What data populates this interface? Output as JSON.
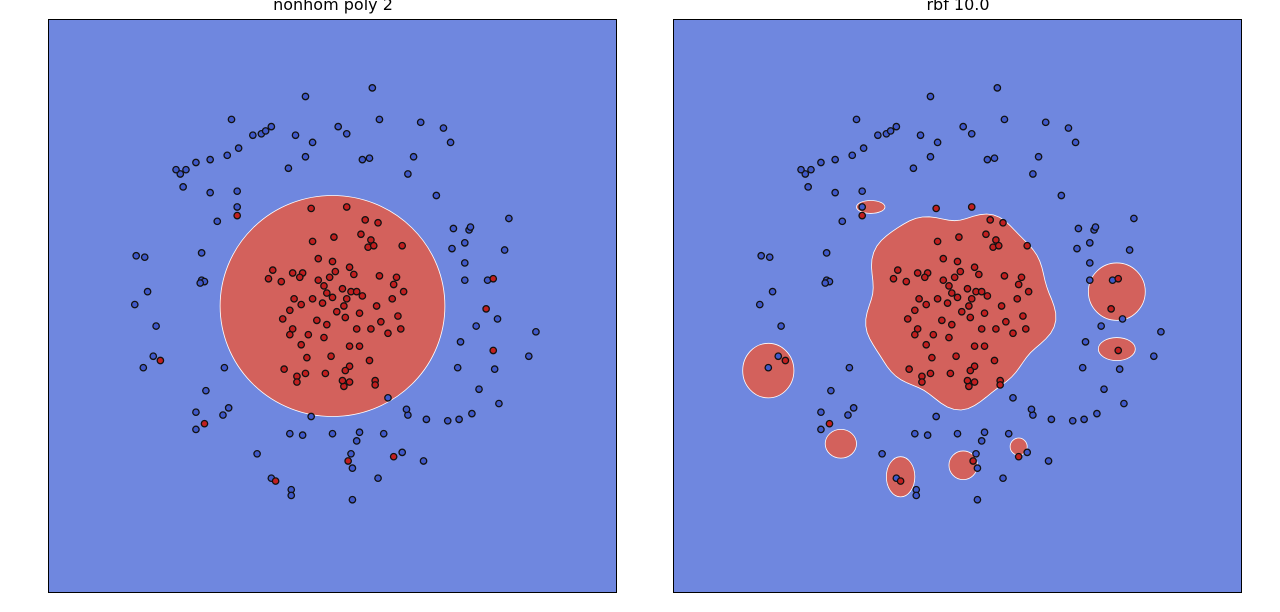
{
  "colors": {
    "background_region": "#6f87df",
    "positive_region": "#d3615c",
    "point_blue": "#4059c9",
    "point_red": "#c11f1f",
    "point_edge": "#111111"
  },
  "chart_data": [
    {
      "type": "scatter",
      "title": "nonhom poly 2",
      "xlim": [
        -2,
        2
      ],
      "ylim": [
        -2,
        2
      ],
      "grid": false,
      "axes_ticks": false,
      "decision_regions": [
        {
          "shape": "ellipse",
          "class": "red",
          "cx": 0.0,
          "cy": 0.0,
          "rx": 0.79,
          "ry": 0.77
        }
      ],
      "points": {
        "red": [
          [
            -0.15,
            0.68
          ],
          [
            0.1,
            0.69
          ],
          [
            0.23,
            0.6
          ],
          [
            0.32,
            0.58
          ],
          [
            0.2,
            0.5
          ],
          [
            0.27,
            0.46
          ],
          [
            -0.14,
            0.45
          ],
          [
            0.01,
            0.48
          ],
          [
            0.25,
            0.41
          ],
          [
            0.49,
            0.42
          ],
          [
            -0.1,
            0.33
          ],
          [
            0.0,
            0.31
          ],
          [
            0.12,
            0.27
          ],
          [
            0.29,
            0.42
          ],
          [
            0.02,
            0.24
          ],
          [
            -0.21,
            0.23
          ],
          [
            -0.42,
            0.25
          ],
          [
            -0.45,
            0.19
          ],
          [
            -0.36,
            0.17
          ],
          [
            -0.23,
            0.2
          ],
          [
            -0.02,
            0.2
          ],
          [
            0.15,
            0.22
          ],
          [
            0.33,
            0.21
          ],
          [
            0.45,
            0.2
          ],
          [
            0.43,
            0.15
          ],
          [
            -0.1,
            0.18
          ],
          [
            -0.28,
            0.23
          ],
          [
            -0.06,
            0.14
          ],
          [
            0.07,
            0.12
          ],
          [
            0.13,
            0.1
          ],
          [
            0.17,
            0.1
          ],
          [
            0.5,
            0.1
          ],
          [
            -0.27,
            0.05
          ],
          [
            -0.04,
            0.09
          ],
          [
            0.0,
            0.06
          ],
          [
            -0.14,
            0.05
          ],
          [
            -0.22,
            0.01
          ],
          [
            0.1,
            0.05
          ],
          [
            0.21,
            0.07
          ],
          [
            0.42,
            0.05
          ],
          [
            0.08,
            0.0
          ],
          [
            0.03,
            -0.04
          ],
          [
            -0.07,
            0.02
          ],
          [
            0.19,
            -0.05
          ],
          [
            0.31,
            0.0
          ],
          [
            -0.3,
            -0.03
          ],
          [
            -0.11,
            -0.1
          ],
          [
            0.09,
            -0.08
          ],
          [
            -0.35,
            -0.09
          ],
          [
            -0.28,
            -0.16
          ],
          [
            -0.04,
            -0.13
          ],
          [
            0.46,
            -0.07
          ],
          [
            0.34,
            -0.11
          ],
          [
            0.39,
            -0.19
          ],
          [
            -0.17,
            -0.2
          ],
          [
            -0.3,
            -0.2
          ],
          [
            -0.06,
            -0.22
          ],
          [
            0.17,
            -0.16
          ],
          [
            0.27,
            -0.16
          ],
          [
            0.48,
            -0.16
          ],
          [
            -0.22,
            -0.27
          ],
          [
            0.12,
            -0.28
          ],
          [
            0.19,
            -0.28
          ],
          [
            -0.18,
            -0.36
          ],
          [
            -0.01,
            -0.35
          ],
          [
            0.26,
            -0.38
          ],
          [
            0.12,
            -0.42
          ],
          [
            -0.19,
            -0.47
          ],
          [
            -0.25,
            -0.49
          ],
          [
            -0.34,
            -0.44
          ],
          [
            0.09,
            -0.45
          ],
          [
            -0.05,
            -0.47
          ],
          [
            0.3,
            -0.52
          ],
          [
            0.12,
            -0.53
          ],
          [
            0.08,
            -0.56
          ],
          [
            -0.25,
            -0.53
          ],
          [
            0.3,
            -0.55
          ],
          [
            0.07,
            -0.52
          ],
          [
            -0.67,
            0.63
          ],
          [
            -1.21,
            -0.38
          ],
          [
            -0.9,
            -0.82
          ],
          [
            1.13,
            0.19
          ],
          [
            1.08,
            -0.02
          ],
          [
            1.13,
            -0.31
          ],
          [
            0.11,
            -1.08
          ],
          [
            0.43,
            -1.05
          ],
          [
            -0.4,
            -1.22
          ]
        ],
        "blue": [
          [
            -0.19,
            1.46
          ],
          [
            0.28,
            1.52
          ],
          [
            0.33,
            1.3
          ],
          [
            -0.71,
            1.3
          ],
          [
            -0.43,
            1.25
          ],
          [
            -0.5,
            1.2
          ],
          [
            -0.26,
            1.19
          ],
          [
            -0.47,
            1.22
          ],
          [
            -0.56,
            1.19
          ],
          [
            -0.14,
            1.14
          ],
          [
            0.04,
            1.25
          ],
          [
            0.1,
            1.2
          ],
          [
            0.62,
            1.28
          ],
          [
            0.78,
            1.24
          ],
          [
            0.83,
            1.14
          ],
          [
            -0.66,
            1.1
          ],
          [
            -0.74,
            1.05
          ],
          [
            -0.19,
            1.04
          ],
          [
            -0.31,
            0.96
          ],
          [
            0.21,
            1.02
          ],
          [
            0.26,
            1.03
          ],
          [
            0.57,
            1.04
          ],
          [
            0.53,
            0.92
          ],
          [
            -0.86,
            1.02
          ],
          [
            -0.96,
            1.0
          ],
          [
            -1.03,
            0.95
          ],
          [
            -1.07,
            0.92
          ],
          [
            -1.1,
            0.95
          ],
          [
            -1.05,
            0.83
          ],
          [
            -0.86,
            0.79
          ],
          [
            -0.67,
            0.8
          ],
          [
            -0.67,
            0.69
          ],
          [
            0.73,
            0.77
          ],
          [
            -0.81,
            0.59
          ],
          [
            0.85,
            0.54
          ],
          [
            0.96,
            0.53
          ],
          [
            0.97,
            0.55
          ],
          [
            0.93,
            0.44
          ],
          [
            1.24,
            0.61
          ],
          [
            0.84,
            0.4
          ],
          [
            -0.92,
            0.37
          ],
          [
            -1.38,
            0.35
          ],
          [
            -1.32,
            0.34
          ],
          [
            0.93,
            0.3
          ],
          [
            1.21,
            0.39
          ],
          [
            -0.92,
            0.18
          ],
          [
            -0.9,
            0.17
          ],
          [
            0.93,
            0.18
          ],
          [
            1.09,
            0.18
          ],
          [
            -1.3,
            0.1
          ],
          [
            -1.39,
            0.01
          ],
          [
            1.16,
            -0.09
          ],
          [
            -1.24,
            -0.14
          ],
          [
            1.43,
            -0.18
          ],
          [
            0.9,
            -0.25
          ],
          [
            1.01,
            -0.14
          ],
          [
            -1.26,
            -0.35
          ],
          [
            -1.33,
            -0.43
          ],
          [
            1.38,
            -0.35
          ],
          [
            -0.76,
            -0.43
          ],
          [
            0.88,
            -0.43
          ],
          [
            1.14,
            -0.44
          ],
          [
            -0.89,
            -0.59
          ],
          [
            1.03,
            -0.58
          ],
          [
            -0.96,
            -0.74
          ],
          [
            -0.73,
            -0.71
          ],
          [
            -0.96,
            -0.86
          ],
          [
            -0.77,
            -0.76
          ],
          [
            0.98,
            -0.75
          ],
          [
            1.17,
            -0.68
          ],
          [
            0.39,
            -0.64
          ],
          [
            0.53,
            -0.76
          ],
          [
            0.89,
            -0.79
          ],
          [
            0.81,
            -0.8
          ],
          [
            0.66,
            -0.79
          ],
          [
            0.52,
            -0.72
          ],
          [
            -0.15,
            -0.77
          ],
          [
            -0.3,
            -0.89
          ],
          [
            -0.21,
            -0.9
          ],
          [
            0.0,
            -0.89
          ],
          [
            0.19,
            -0.88
          ],
          [
            0.36,
            -0.89
          ],
          [
            0.17,
            -0.94
          ],
          [
            0.49,
            -1.02
          ],
          [
            0.64,
            -1.08
          ],
          [
            0.13,
            -1.03
          ],
          [
            0.14,
            -1.13
          ],
          [
            -0.53,
            -1.03
          ],
          [
            -0.43,
            -1.2
          ],
          [
            -0.29,
            -1.28
          ],
          [
            -0.29,
            -1.32
          ],
          [
            0.32,
            -1.2
          ],
          [
            0.14,
            -1.35
          ],
          [
            -0.93,
            0.16
          ]
        ]
      }
    },
    {
      "type": "scatter",
      "title": "rbf 10.0",
      "xlim": [
        -2,
        2
      ],
      "ylim": [
        -2,
        2
      ],
      "grid": false,
      "axes_ticks": false,
      "decision_regions": [
        {
          "shape": "blob",
          "class": "red",
          "cx": 0.0,
          "cy": 0.0,
          "rx": 0.65,
          "ry": 0.66
        },
        {
          "shape": "ellipse",
          "class": "red",
          "cx": -0.61,
          "cy": 0.69,
          "rx": 0.1,
          "ry": 0.045
        },
        {
          "shape": "ellipse",
          "class": "red",
          "cx": 1.12,
          "cy": 0.1,
          "rx": 0.2,
          "ry": 0.2
        },
        {
          "shape": "ellipse",
          "class": "red",
          "cx": 1.12,
          "cy": -0.3,
          "rx": 0.13,
          "ry": 0.08
        },
        {
          "shape": "ellipse",
          "class": "red",
          "cx": -1.33,
          "cy": -0.45,
          "rx": 0.18,
          "ry": 0.19
        },
        {
          "shape": "ellipse",
          "class": "red",
          "cx": -0.82,
          "cy": -0.96,
          "rx": 0.11,
          "ry": 0.1
        },
        {
          "shape": "ellipse",
          "class": "red",
          "cx": -0.4,
          "cy": -1.19,
          "rx": 0.1,
          "ry": 0.14
        },
        {
          "shape": "ellipse",
          "class": "red",
          "cx": 0.04,
          "cy": -1.11,
          "rx": 0.1,
          "ry": 0.1
        },
        {
          "shape": "ellipse",
          "class": "red",
          "cx": 0.43,
          "cy": -0.98,
          "rx": 0.06,
          "ry": 0.06
        }
      ]
    }
  ]
}
